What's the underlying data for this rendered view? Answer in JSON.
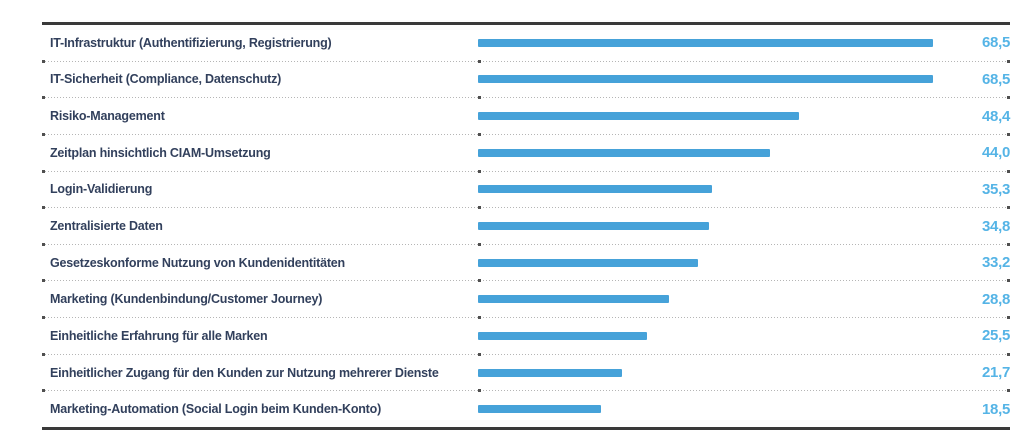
{
  "chart_data": {
    "type": "bar",
    "orientation": "horizontal",
    "title": "",
    "xlabel": "",
    "ylabel": "",
    "legend": "none",
    "grid": "dotted horizontal row separators between categories, thick dark rules at top and bottom",
    "xlim": [
      0,
      72
    ],
    "categories": [
      "IT-Infrastruktur (Authentifizierung, Registrierung)",
      "IT-Sicherheit (Compliance, Datenschutz)",
      "Risiko-Management",
      "Zeitplan hinsichtlich CIAM-Umsetzung",
      "Login-Validierung",
      "Zentralisierte Daten",
      "Gesetzeskonforme Nutzung von Kundenidentitäten",
      "Marketing (Kundenbindung/Customer Journey)",
      "Einheitliche Erfahrung für alle Marken",
      "Einheitlicher Zugang für den Kunden zur Nutzung mehrerer Dienste",
      "Marketing-Automation (Social Login beim Kunden-Konto)"
    ],
    "values": [
      68.5,
      68.5,
      48.4,
      44.0,
      35.3,
      34.8,
      33.2,
      28.8,
      25.5,
      21.7,
      18.5
    ],
    "value_labels": [
      "68,5",
      "68,5",
      "48,4",
      "44,0",
      "35,3",
      "34,8",
      "33,2",
      "28,8",
      "25,5",
      "21,7",
      "18,5"
    ]
  },
  "colors": {
    "background": "#ffffff",
    "bar": "#46a2d9",
    "value_text": "#55b4e6",
    "category_text": "#32405c",
    "rule": "#3a3a3a",
    "separator_dot": "#b5b5b5",
    "separator_end_dot": "#4f4f4f"
  }
}
